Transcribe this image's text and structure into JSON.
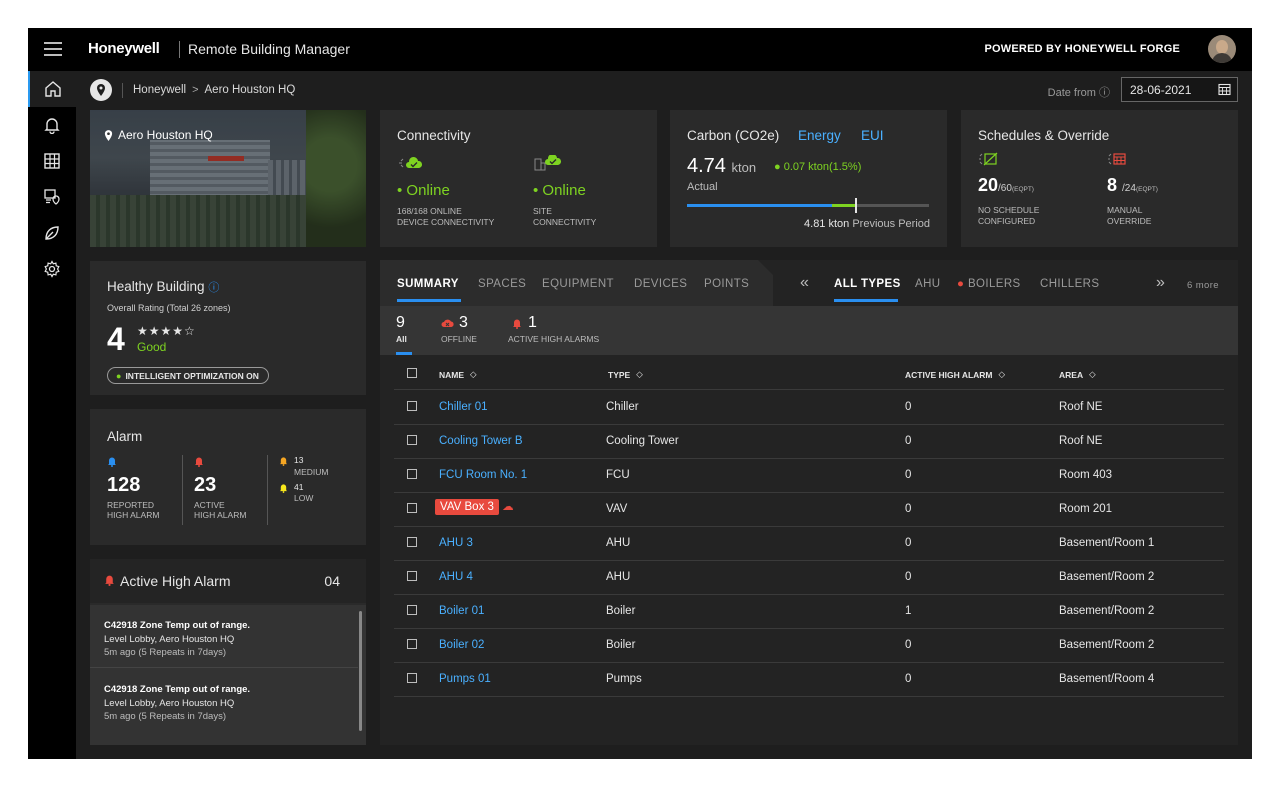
{
  "header": {
    "brand": "Honeywell",
    "app_name": "Remote Building Manager",
    "powered_by": "POWERED BY HONEYWELL FORGE"
  },
  "sidebar": {
    "items": [
      {
        "icon": "home-icon",
        "active": true
      },
      {
        "icon": "bell-icon",
        "active": false
      },
      {
        "icon": "grid-icon",
        "active": false
      },
      {
        "icon": "device-shield-icon",
        "active": false
      },
      {
        "icon": "leaf-icon",
        "active": false
      },
      {
        "icon": "gear-icon",
        "active": false
      }
    ]
  },
  "breadcrumb": {
    "items": [
      "Honeywell",
      "Aero Houston HQ"
    ],
    "separator": ">"
  },
  "date_filter": {
    "label": "Date from",
    "value": "28-06-2021"
  },
  "building_card": {
    "title": "Aero Houston HQ"
  },
  "connectivity": {
    "title": "Connectivity",
    "device": {
      "status": "Online",
      "count": "168/168 ONLINE",
      "label": "DEVICE CONNECTIVITY"
    },
    "site": {
      "status": "Online",
      "count": "SITE",
      "label": "CONNECTIVITY"
    }
  },
  "carbon": {
    "tabs": [
      "Carbon (CO2e)",
      "Energy",
      "EUI"
    ],
    "value": "4.74",
    "unit": "kton",
    "delta": "0.07 kton(1.5%)",
    "actual_label": "Actual",
    "previous_value": "4.81 kton",
    "previous_label": "Previous Period",
    "progress": {
      "actual_fraction": 0.6,
      "delta_fraction": 0.1,
      "previous_fraction": 0.8
    }
  },
  "schedules": {
    "title": "Schedules & Override",
    "no_schedule": {
      "value": "20",
      "total": "/60",
      "unit": "(EQPT)",
      "label1": "NO SCHEDULE",
      "label2": "CONFIGURED"
    },
    "manual": {
      "value": "8",
      "total": "/24",
      "unit": "(EQPT)",
      "label1": "MANUAL",
      "label2": "OVERRIDE"
    }
  },
  "healthy": {
    "title": "Healthy Building",
    "subtitle": "Overall Rating (Total 26 zones)",
    "rating": "4",
    "stars": "★★★★☆",
    "rating_label": "Good",
    "optimization": "INTELLIGENT OPTIMIZATION ON"
  },
  "alarm": {
    "title": "Alarm",
    "reported": {
      "value": "128",
      "label1": "REPORTED",
      "label2": "HIGH ALARM"
    },
    "active": {
      "value": "23",
      "label1": "ACTIVE",
      "label2": "HIGH ALARM"
    },
    "medium": {
      "value": "13",
      "label": "MEDIUM"
    },
    "low": {
      "value": "41",
      "label": "LOW"
    }
  },
  "active_high_alarm": {
    "title": "Active High Alarm",
    "count": "04",
    "items": [
      {
        "title": "C42918 Zone Temp out of range.",
        "location": "Level Lobby, Aero Houston HQ",
        "time": "5m ago (5 Repeats in 7days)"
      },
      {
        "title": "C42918 Zone Temp out of range.",
        "location": "Level Lobby, Aero Houston HQ",
        "time": "5m ago (5 Repeats in 7days)"
      }
    ]
  },
  "main_tabs": [
    "SUMMARY",
    "SPACES",
    "EQUIPMENT",
    "DEVICES",
    "POINTS"
  ],
  "type_tabs": [
    "ALL TYPES",
    "AHU",
    "BOILERS",
    "CHILLERS"
  ],
  "more_label": "6 more",
  "stats": {
    "all": {
      "value": "9",
      "label": "All"
    },
    "offline": {
      "value": "3",
      "label": "OFFLINE"
    },
    "alarms": {
      "value": "1",
      "label": "ACTIVE HIGH ALARMS"
    }
  },
  "table": {
    "columns": [
      "NAME",
      "TYPE",
      "ACTIVE HIGH ALARM",
      "AREA"
    ],
    "rows": [
      {
        "name": "Chiller 01",
        "type": "Chiller",
        "alarm": "0",
        "area": "Roof NE"
      },
      {
        "name": "Cooling Tower B",
        "type": "Cooling Tower",
        "alarm": "0",
        "area": "Roof NE"
      },
      {
        "name": "FCU Room No. 1",
        "type": "FCU",
        "alarm": "0",
        "area": "Room 403"
      },
      {
        "name": "VAV Box 3",
        "type": "VAV",
        "alarm": "0",
        "area": "Room 201",
        "offline": true
      },
      {
        "name": "AHU 3",
        "type": "AHU",
        "alarm": "0",
        "area": "Basement/Room 1"
      },
      {
        "name": "AHU 4",
        "type": "AHU",
        "alarm": "0",
        "area": "Basement/Room 2"
      },
      {
        "name": "Boiler 01",
        "type": "Boiler",
        "alarm": "1",
        "area": "Basement/Room 2"
      },
      {
        "name": "Boiler 02",
        "type": "Boiler",
        "alarm": "0",
        "area": "Basement/Room 2"
      },
      {
        "name": "Pumps 01",
        "type": "Pumps",
        "alarm": "0",
        "area": "Basement/Room 4"
      }
    ]
  },
  "colors": {
    "accent": "#2a8ff0",
    "link": "#4ab0ff",
    "online": "#7ed321",
    "alert": "#e84a3e",
    "warning": "#f5a623"
  }
}
